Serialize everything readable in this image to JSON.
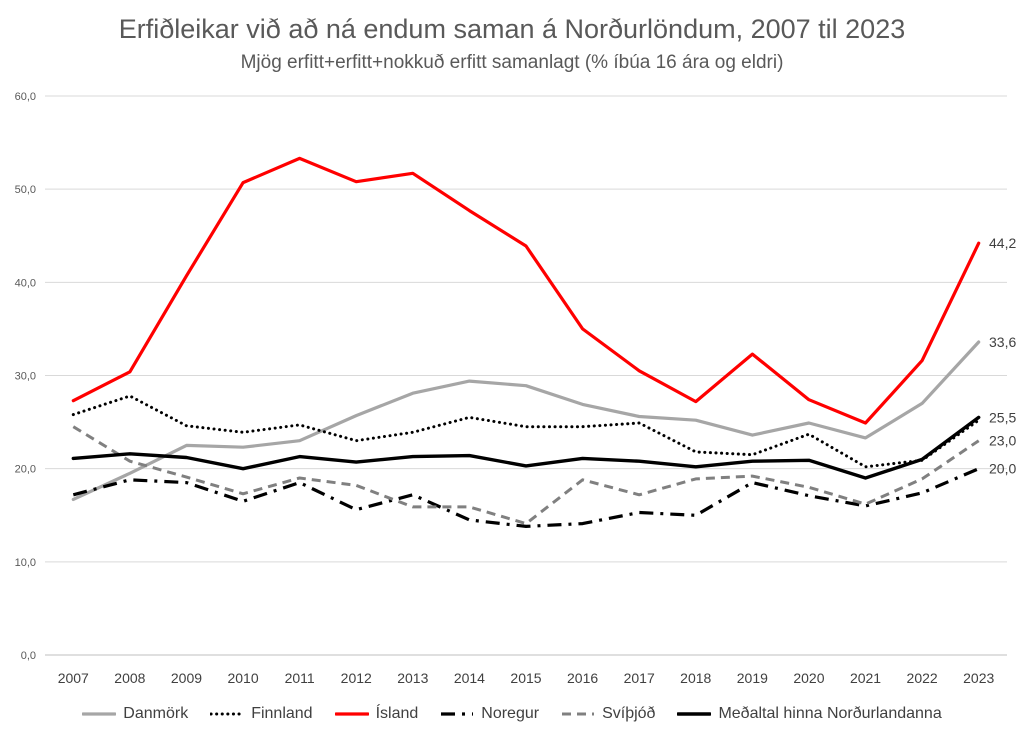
{
  "chart_data": {
    "type": "line",
    "title": "Erfiðleikar við að ná endum saman á Norðurlöndum, 2007 til 2023",
    "subtitle": "Mjög erfitt+erfitt+nokkuð  erfitt samanlagt (% íbúa 16 ára og eldri)",
    "xlabel": "",
    "ylabel": "",
    "ylim": [
      0,
      60
    ],
    "yticks": [
      "0,0",
      "10,0",
      "20,0",
      "30,0",
      "40,0",
      "50,0",
      "60,0"
    ],
    "grid": true,
    "legend_position": "bottom",
    "categories": [
      "2007",
      "2008",
      "2009",
      "2010",
      "2011",
      "2012",
      "2013",
      "2014",
      "2015",
      "2016",
      "2017",
      "2018",
      "2019",
      "2020",
      "2021",
      "2022",
      "2023"
    ],
    "series": [
      {
        "name": "Danmörk",
        "color": "#a6a6a6",
        "style": "solid",
        "values": [
          16.7,
          19.5,
          22.5,
          22.3,
          23.0,
          25.7,
          28.1,
          29.4,
          28.9,
          26.9,
          25.6,
          25.2,
          23.6,
          24.9,
          23.3,
          27.0,
          33.6
        ],
        "end_label": "33,6"
      },
      {
        "name": "Finnland",
        "color": "#000000",
        "style": "dotted",
        "values": [
          25.8,
          27.8,
          24.6,
          23.9,
          24.7,
          23.0,
          23.9,
          25.5,
          24.5,
          24.5,
          24.9,
          21.8,
          21.5,
          23.7,
          20.2,
          20.9,
          25.2
        ],
        "end_label": ""
      },
      {
        "name": "Ísland",
        "color": "#ff0000",
        "style": "solid",
        "values": [
          27.3,
          30.4,
          40.7,
          50.7,
          53.3,
          50.8,
          51.7,
          47.7,
          43.9,
          35.0,
          30.5,
          27.2,
          32.3,
          27.4,
          24.9,
          31.6,
          44.2
        ],
        "end_label": "44,2"
      },
      {
        "name": "Noregur",
        "color": "#000000",
        "style": "dashdot",
        "values": [
          17.2,
          18.8,
          18.5,
          16.5,
          18.5,
          15.6,
          17.2,
          14.5,
          13.8,
          14.1,
          15.3,
          15.0,
          18.5,
          17.1,
          16.0,
          17.4,
          20.0
        ],
        "end_label": "20,0"
      },
      {
        "name": "Svíþjóð",
        "color": "#808080",
        "style": "dashed",
        "values": [
          24.5,
          20.8,
          19.1,
          17.3,
          19.0,
          18.2,
          15.9,
          15.9,
          14.1,
          18.8,
          17.2,
          18.9,
          19.2,
          18.0,
          16.2,
          18.9,
          23.0
        ],
        "end_label": "23,0"
      },
      {
        "name": "Meðaltal hinna Norðurlandanna",
        "color": "#000000",
        "style": "solid-bold",
        "values": [
          21.1,
          21.6,
          21.2,
          20.0,
          21.3,
          20.7,
          21.3,
          21.4,
          20.3,
          21.1,
          20.8,
          20.2,
          20.8,
          20.9,
          19.0,
          21.0,
          25.5
        ],
        "end_label": "25,5"
      }
    ]
  }
}
